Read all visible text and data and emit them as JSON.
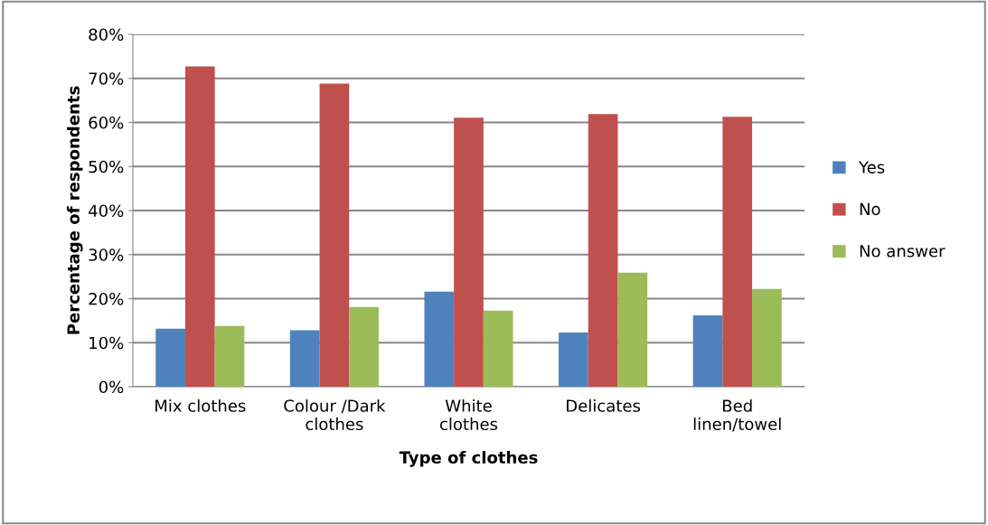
{
  "chart_data": {
    "type": "bar",
    "xlabel": "Type of clothes",
    "ylabel": "Percentage of respondents",
    "categories": [
      "Mix clothes",
      "Colour /Dark\nclothes",
      "White\nclothes",
      "Delicates",
      "Bed\nlinen/towel"
    ],
    "series": [
      {
        "name": "Yes",
        "color": "#4f81bd",
        "values": [
          13.2,
          12.8,
          21.6,
          12.3,
          16.2
        ]
      },
      {
        "name": "No",
        "color": "#c0504d",
        "values": [
          72.7,
          68.8,
          61.1,
          61.9,
          61.3
        ]
      },
      {
        "name": "No answer",
        "color": "#9bbb59",
        "values": [
          13.8,
          18.1,
          17.3,
          25.9,
          22.2
        ]
      }
    ],
    "ylim": [
      0,
      80
    ],
    "yticks": [
      {
        "value": 0,
        "label": "0%"
      },
      {
        "value": 10,
        "label": "10%"
      },
      {
        "value": 20,
        "label": "20%"
      },
      {
        "value": 30,
        "label": "30%"
      },
      {
        "value": 40,
        "label": "40%"
      },
      {
        "value": 50,
        "label": "50%"
      },
      {
        "value": 60,
        "label": "60%"
      },
      {
        "value": 70,
        "label": "70%"
      },
      {
        "value": 80,
        "label": "80%"
      }
    ],
    "grid": "y",
    "legend": "right"
  }
}
